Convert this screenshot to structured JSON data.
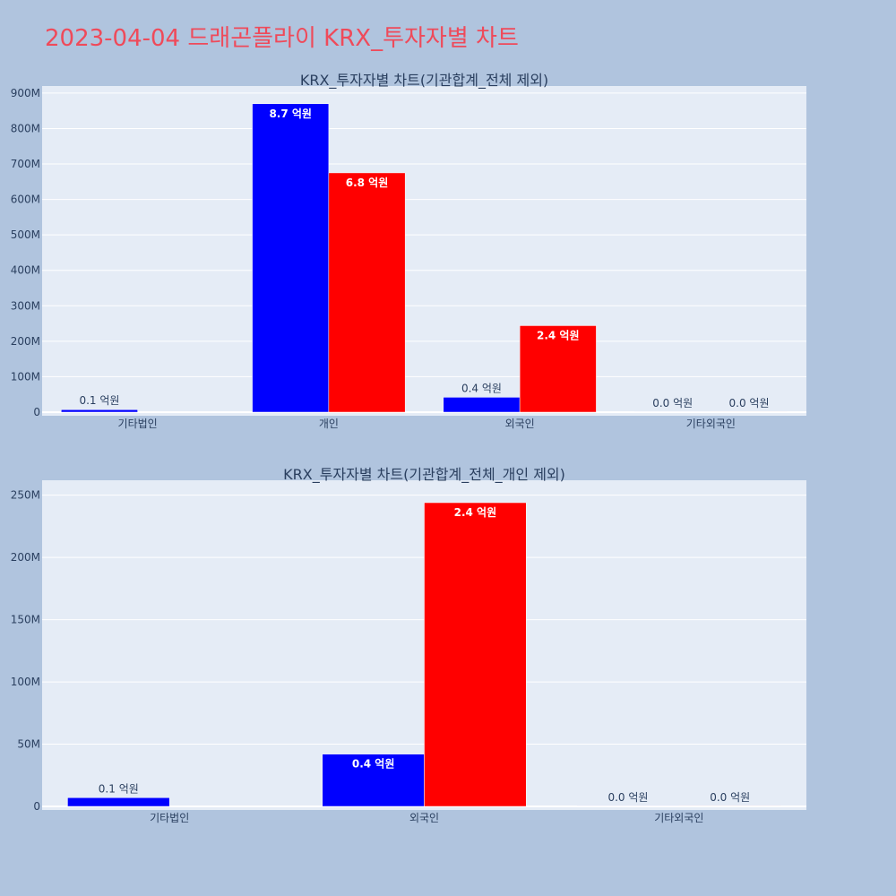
{
  "page": {
    "title": "2023-04-04 드래곤플라이 KRX_투자자별 차트"
  },
  "colors": {
    "buy": "#0000ff",
    "sell": "#ff0000",
    "plot_bg": "#e5ecf6",
    "page_bg": "#b0c4de",
    "title": "#ef4a5a"
  },
  "chart_data": [
    {
      "type": "bar",
      "title": "KRX_투자자별 차트(기관합계_전체 제외)",
      "categories": [
        "기타법인",
        "개인",
        "외국인",
        "기타외국인"
      ],
      "series": [
        {
          "values": [
            7000000,
            870000000,
            42000000,
            100000
          ],
          "labels": [
            "0.1 억원",
            "8.7 억원",
            "0.4 억원",
            "0.0 억원"
          ]
        },
        {
          "values": [
            0,
            675000000,
            244000000,
            100000
          ],
          "labels": [
            "",
            "6.8 억원",
            "2.4 억원",
            "0.0 억원"
          ]
        }
      ],
      "ylim": [
        0,
        920000000
      ],
      "yticks": [
        0,
        100000000,
        200000000,
        300000000,
        400000000,
        500000000,
        600000000,
        700000000,
        800000000,
        900000000
      ],
      "yticklabels": [
        "0",
        "100M",
        "200M",
        "300M",
        "400M",
        "500M",
        "600M",
        "700M",
        "800M",
        "900M"
      ],
      "grid": true
    },
    {
      "type": "bar",
      "title": "KRX_투자자별 차트(기관합계_전체_개인 제외)",
      "categories": [
        "기타법인",
        "외국인",
        "기타외국인"
      ],
      "series": [
        {
          "values": [
            7000000,
            42000000,
            100000
          ],
          "labels": [
            "0.1 억원",
            "0.4 억원",
            "0.0 억원"
          ]
        },
        {
          "values": [
            0,
            244000000,
            100000
          ],
          "labels": [
            "",
            "2.4 억원",
            "0.0 억원"
          ]
        }
      ],
      "ylim": [
        0,
        262000000
      ],
      "yticks": [
        0,
        50000000,
        100000000,
        150000000,
        200000000,
        250000000
      ],
      "yticklabels": [
        "0",
        "50M",
        "100M",
        "150M",
        "200M",
        "250M"
      ],
      "grid": true
    }
  ]
}
